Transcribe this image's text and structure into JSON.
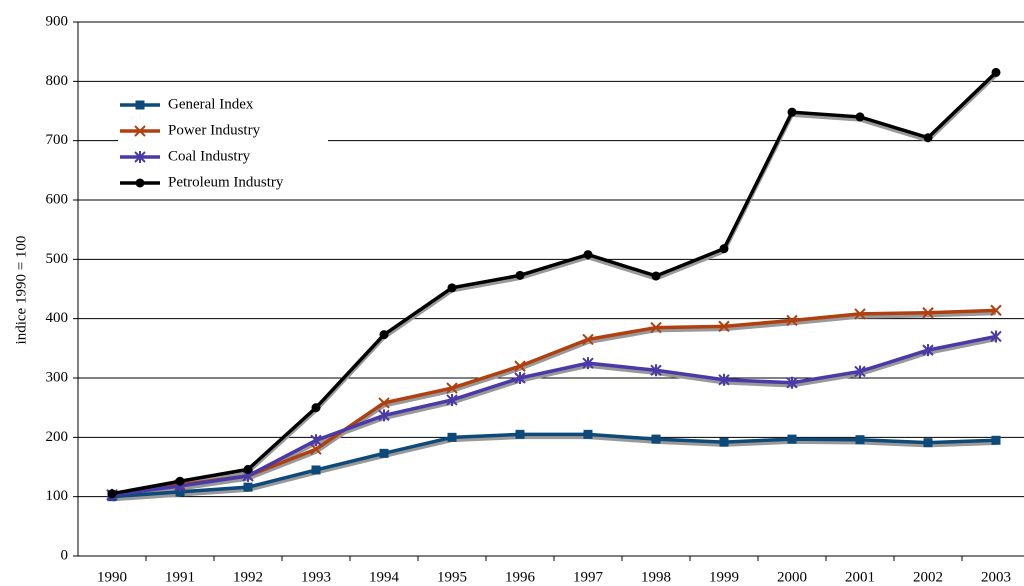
{
  "chart_data": {
    "type": "line",
    "y_label": "indice 1990 = 100",
    "categories": [
      "1990",
      "1991",
      "1992",
      "1993",
      "1994",
      "1995",
      "1996",
      "1997",
      "1998",
      "1999",
      "2000",
      "2001",
      "2002",
      "2003"
    ],
    "series": [
      {
        "name": "General Index",
        "color": "#0d4a7a",
        "marker": "square",
        "values": [
          100,
          108,
          116,
          145,
          173,
          200,
          205,
          205,
          197,
          192,
          197,
          196,
          191,
          195
        ]
      },
      {
        "name": "Power Industry",
        "color": "#b04010",
        "marker": "x",
        "values": [
          103,
          120,
          135,
          180,
          258,
          283,
          320,
          365,
          385,
          387,
          397,
          408,
          410,
          414
        ]
      },
      {
        "name": "Coal Industry",
        "color": "#4a3aa8",
        "marker": "star",
        "values": [
          103,
          118,
          135,
          195,
          237,
          263,
          300,
          325,
          313,
          297,
          292,
          311,
          347,
          370
        ]
      },
      {
        "name": "Petroleum Industry",
        "color": "#000000",
        "marker": "circle",
        "values": [
          105,
          126,
          146,
          250,
          373,
          452,
          473,
          508,
          472,
          518,
          748,
          740,
          705,
          815
        ]
      }
    ],
    "ylim": [
      0,
      900
    ],
    "yticks": [
      0,
      100,
      200,
      300,
      400,
      500,
      600,
      700,
      800,
      900
    ],
    "grid": true,
    "legend": "top-left"
  }
}
